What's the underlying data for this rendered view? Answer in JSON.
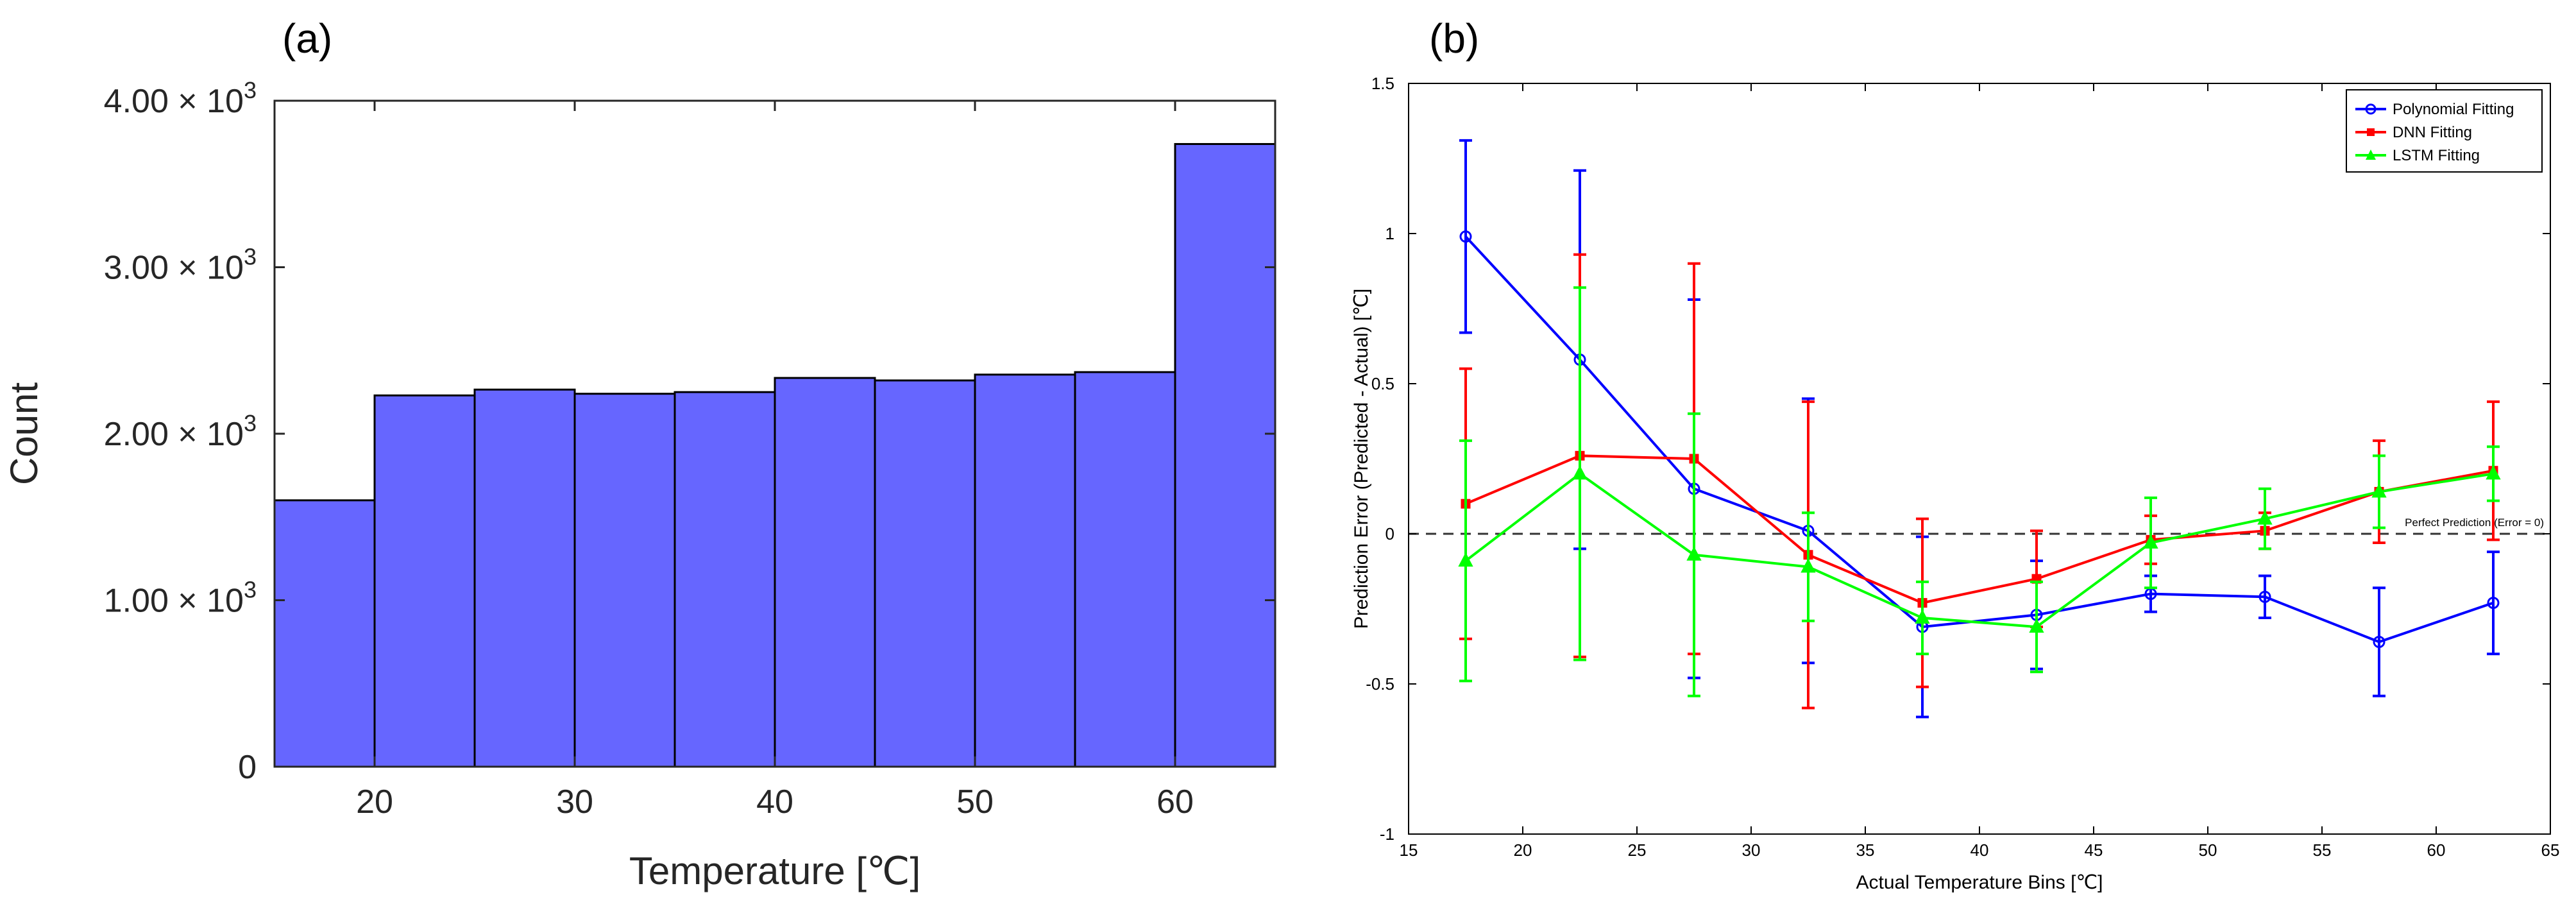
{
  "panels": {
    "a_label": "(a)",
    "b_label": "(b)"
  },
  "chart_data": [
    {
      "type": "bar",
      "title": "",
      "xlabel": "Temperature [℃]",
      "ylabel": "Count",
      "xlim": [
        15,
        65
      ],
      "ylim": [
        0,
        4000
      ],
      "bin_edges": [
        15,
        20,
        25,
        30,
        35,
        40,
        45,
        50,
        55,
        60,
        65
      ],
      "values": [
        1600,
        2230,
        2265,
        2240,
        2250,
        2335,
        2320,
        2355,
        2370,
        3740
      ],
      "bar_color": "#6666ff",
      "grid": false,
      "x_ticks": [
        {
          "value": 20,
          "label": "20"
        },
        {
          "value": 30,
          "label": "30"
        },
        {
          "value": 40,
          "label": "40"
        },
        {
          "value": 50,
          "label": "50"
        },
        {
          "value": 60,
          "label": "60"
        }
      ],
      "y_ticks": [
        {
          "value": 0,
          "label": "0"
        },
        {
          "value": 1000,
          "label": "1.00 × 10",
          "exp": "3"
        },
        {
          "value": 2000,
          "label": "2.00 × 10",
          "exp": "3"
        },
        {
          "value": 3000,
          "label": "3.00 × 10",
          "exp": "3"
        },
        {
          "value": 4000,
          "label": "4.00 × 10",
          "exp": "3"
        }
      ]
    },
    {
      "type": "line",
      "title": "",
      "xlabel": "Actual Temperature Bins [℃]",
      "ylabel": "Prediction Error (Predicted - Actual) [℃]",
      "xlim": [
        15,
        65
      ],
      "ylim": [
        -1,
        1.5
      ],
      "grid": false,
      "legend_position": "top-right",
      "x": [
        17.5,
        22.5,
        27.5,
        32.5,
        37.5,
        42.5,
        47.5,
        52.5,
        57.5,
        62.5
      ],
      "series": [
        {
          "name": "Polynomial Fitting",
          "color": "#0000ff",
          "marker": "circle",
          "values": [
            0.99,
            0.58,
            0.15,
            0.01,
            -0.31,
            -0.27,
            -0.2,
            -0.21,
            -0.36,
            -0.23
          ],
          "errors": [
            0.32,
            0.63,
            0.63,
            0.44,
            0.3,
            0.18,
            0.06,
            0.07,
            0.18,
            0.17
          ]
        },
        {
          "name": "DNN Fitting",
          "color": "#ff0000",
          "marker": "square",
          "values": [
            0.1,
            0.26,
            0.25,
            -0.07,
            -0.23,
            -0.15,
            -0.02,
            0.01,
            0.14,
            0.21
          ],
          "errors": [
            0.45,
            0.67,
            0.65,
            0.51,
            0.28,
            0.16,
            0.08,
            0.06,
            0.17,
            0.23
          ]
        },
        {
          "name": "LSTM Fitting",
          "color": "#00ff00",
          "marker": "triangle",
          "values": [
            -0.09,
            0.2,
            -0.07,
            -0.11,
            -0.28,
            -0.31,
            -0.03,
            0.05,
            0.14,
            0.2
          ],
          "errors": [
            0.4,
            0.62,
            0.47,
            0.18,
            0.12,
            0.15,
            0.15,
            0.1,
            0.12,
            0.09
          ]
        }
      ],
      "reference_line": {
        "y": 0,
        "style": "dashed",
        "color": "#333333",
        "label": "Perfect Prediction (Error = 0)"
      },
      "x_ticks": [
        {
          "value": 15,
          "label": "15"
        },
        {
          "value": 20,
          "label": "20"
        },
        {
          "value": 25,
          "label": "25"
        },
        {
          "value": 30,
          "label": "30"
        },
        {
          "value": 35,
          "label": "35"
        },
        {
          "value": 40,
          "label": "40"
        },
        {
          "value": 45,
          "label": "45"
        },
        {
          "value": 50,
          "label": "50"
        },
        {
          "value": 55,
          "label": "55"
        },
        {
          "value": 60,
          "label": "60"
        },
        {
          "value": 65,
          "label": "65"
        }
      ],
      "y_ticks": [
        {
          "value": -1,
          "label": "-1"
        },
        {
          "value": -0.5,
          "label": "-0.5"
        },
        {
          "value": 0,
          "label": "0"
        },
        {
          "value": 0.5,
          "label": "0.5"
        },
        {
          "value": 1,
          "label": "1"
        },
        {
          "value": 1.5,
          "label": "1.5"
        }
      ]
    }
  ]
}
